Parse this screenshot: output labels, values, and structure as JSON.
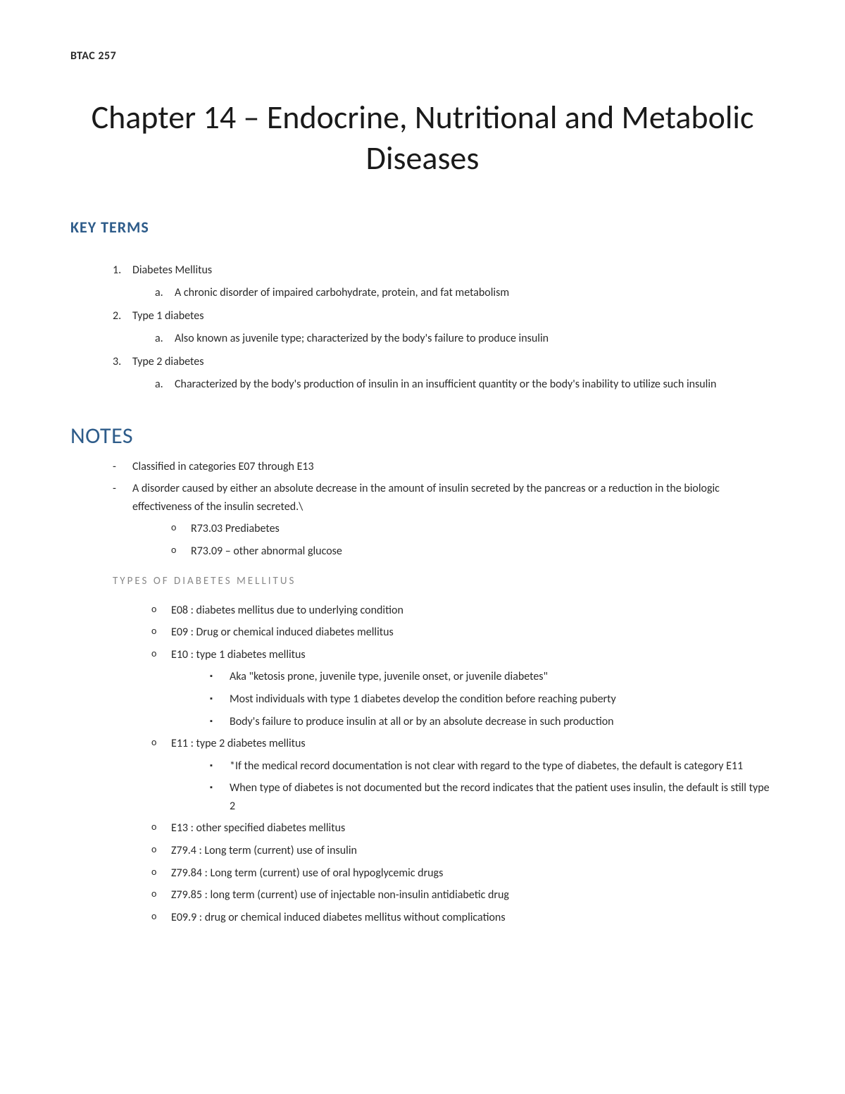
{
  "course_code": "BTAC 257",
  "chapter_title": "Chapter 14 – Endocrine, Nutritional and Metabolic Diseases",
  "key_terms": {
    "heading": "KEY TERMS",
    "items": [
      {
        "term": "Diabetes Mellitus",
        "definitions": [
          "A chronic disorder of impaired carbohydrate, protein, and fat metabolism"
        ]
      },
      {
        "term": "Type 1 diabetes",
        "definitions": [
          "Also known as juvenile type; characterized by the body's failure to produce insulin"
        ]
      },
      {
        "term": "Type 2 diabetes",
        "definitions": [
          "Characterized by the body's production of insulin in an insufficient quantity or the body's inability to utilize such insulin"
        ]
      }
    ]
  },
  "notes": {
    "heading": "NOTES",
    "bullets": [
      "Classified in categories E07 through E13",
      "A disorder caused by either an absolute decrease in the amount of insulin secreted by the pancreas or a reduction in the biologic effectiveness of the insulin secreted.\\"
    ],
    "sub_bullets": [
      "R73.03 Prediabetes",
      "R73.09 – other abnormal glucose"
    ],
    "types_heading": "TYPES OF DIABETES MELLITUS",
    "types": [
      {
        "text": "E08 : diabetes mellitus due to underlying condition",
        "children": []
      },
      {
        "text": "E09 : Drug or chemical induced diabetes mellitus",
        "children": []
      },
      {
        "text": "E10 : type 1 diabetes mellitus",
        "children": [
          "Aka \"ketosis prone, juvenile type, juvenile onset, or juvenile diabetes\"",
          "Most individuals with type 1 diabetes develop the condition before reaching puberty",
          "Body's failure to produce insulin at all or by an absolute decrease in such production"
        ]
      },
      {
        "text": "E11 : type 2 diabetes mellitus",
        "children": [
          "*If the medical record documentation is not clear with regard to the type of diabetes, the default is category E11",
          "When type of diabetes is not documented but the record indicates that the patient uses insulin, the default is still type 2"
        ]
      },
      {
        "text": "E13 : other specified diabetes mellitus",
        "children": []
      },
      {
        "text": "Z79.4 : Long term (current) use of insulin",
        "children": []
      },
      {
        "text": "Z79.84 : Long term (current) use of oral hypoglycemic drugs",
        "children": []
      },
      {
        "text": "Z79.85 : long term (current) use of injectable non-insulin antidiabetic drug",
        "children": []
      },
      {
        "text": "E09.9 : drug or chemical induced diabetes mellitus without complications",
        "children": []
      }
    ]
  },
  "colors": {
    "text": "#2a2a2a",
    "heading_blue": "#2e5c8a",
    "sub_heading_gray": "#888888",
    "background": "#ffffff"
  }
}
